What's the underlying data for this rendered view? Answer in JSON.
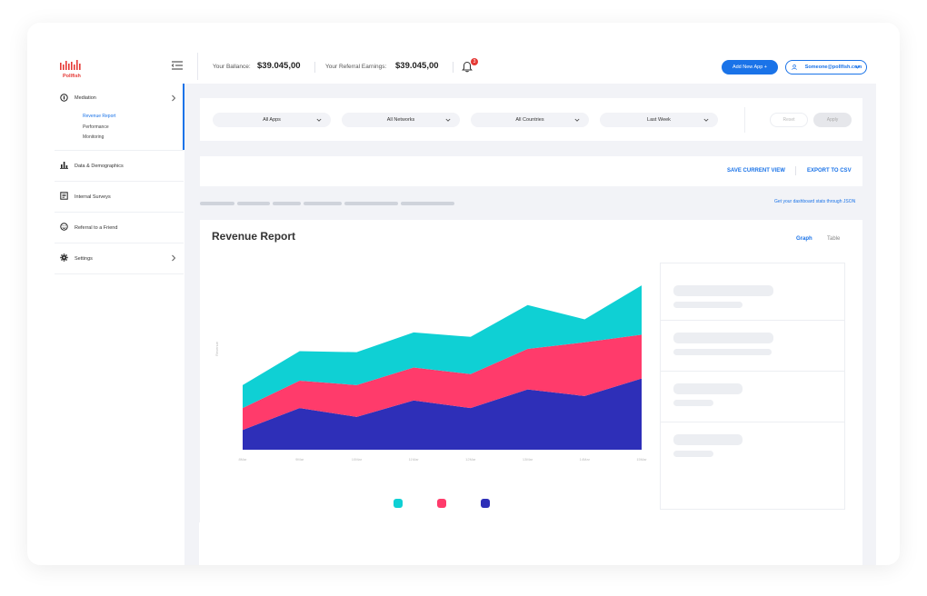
{
  "brand": {
    "logo_text": "Pollfish",
    "logo_color": "#e53935"
  },
  "header": {
    "balance_label": "Your Ballance:",
    "balance_value": "$39.045,00",
    "referral_label": "Your Referral Earnings:",
    "referral_value": "$39.045,00",
    "notification_count": "3",
    "add_app_label": "Add New App +",
    "user_email": "Someone@pollfish.com"
  },
  "sidebar": {
    "items": [
      {
        "label": "Mediation",
        "icon": "mediation-icon",
        "subitems": [
          "Revenue Report",
          "Performance",
          "Monitoring"
        ],
        "active_sub": "Revenue Report"
      },
      {
        "label": "Data & Demographics",
        "icon": "bar-chart-icon"
      },
      {
        "label": "Internal Surveys",
        "icon": "survey-icon"
      },
      {
        "label": "Referral to a Friend",
        "icon": "smile-icon"
      },
      {
        "label": "Settings",
        "icon": "gear-icon"
      }
    ]
  },
  "filters": {
    "apps": "All Apps",
    "networks": "All Networks",
    "countries": "All Countries",
    "period": "Last Week",
    "reset_label": "Reset",
    "apply_label": "Apply"
  },
  "actions": {
    "save_view": "SAVE CURRENT VIEW",
    "export_csv": "EXPORT TO CSV",
    "json_link": "Get your dashboard stats through JSON"
  },
  "report": {
    "title": "Revenue Report",
    "view_graph": "Graph",
    "view_table": "Table"
  },
  "colors": {
    "accent": "#1a73e8",
    "series_top": "#0fd0d4",
    "series_mid": "#ff3b6b",
    "series_base": "#2e2fb8"
  },
  "chart_data": {
    "type": "area",
    "stacked": true,
    "title": "",
    "xlabel": "",
    "ylabel": "Revenue",
    "x": [
      "8Mar",
      "9Mar",
      "10Mar",
      "11Mar",
      "12Mar",
      "13Mar",
      "14Mar",
      "15Mar"
    ],
    "series": [
      {
        "color": "#2e2fb8",
        "values": [
          18,
          38,
          30,
          45,
          38,
          55,
          49,
          65
        ]
      },
      {
        "color": "#ff3b6b",
        "values": [
          20,
          25,
          29,
          30,
          31,
          37,
          49,
          40
        ]
      },
      {
        "color": "#0fd0d4",
        "values": [
          21,
          27,
          30,
          32,
          34,
          40,
          21,
          45
        ]
      }
    ],
    "ylim": [
      0,
      160
    ],
    "grid": false,
    "legend": "bottom"
  }
}
